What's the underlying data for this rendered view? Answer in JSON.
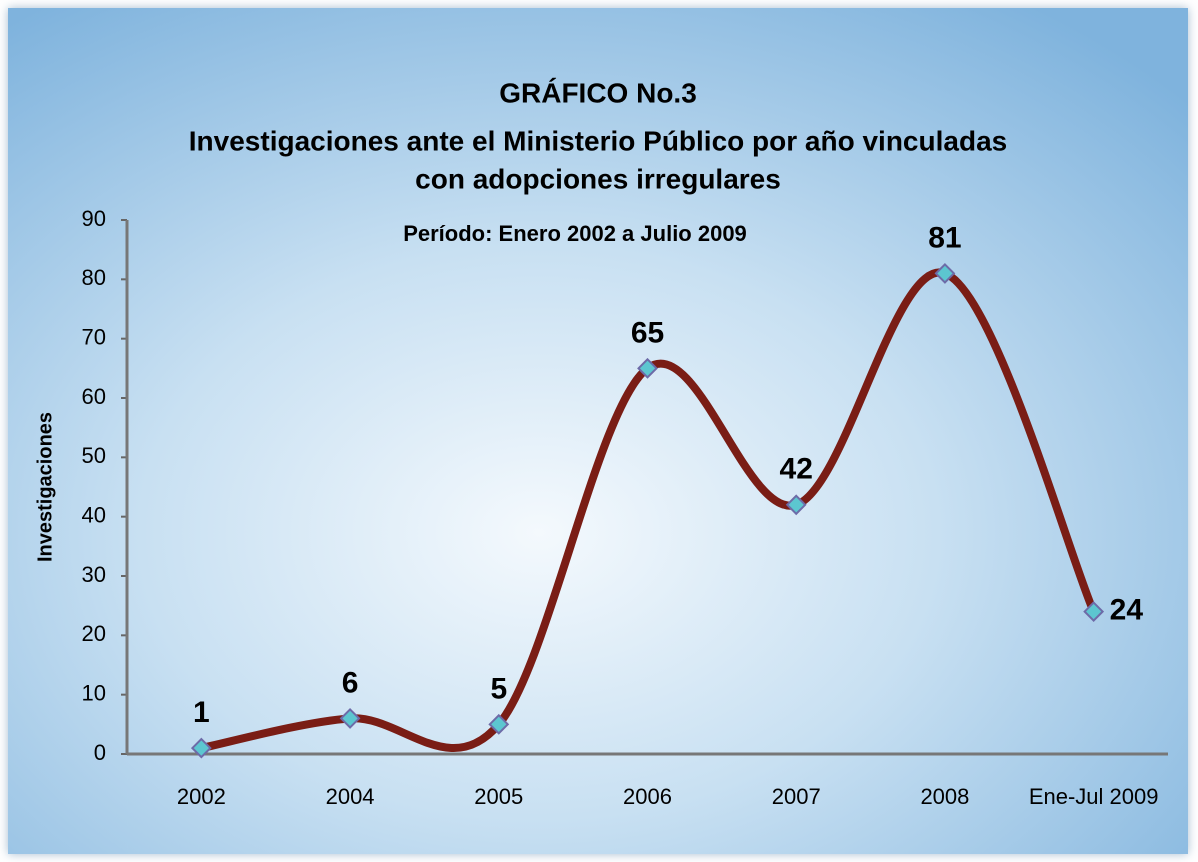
{
  "chart_data": {
    "type": "line",
    "title": "GRÁFICO No.3",
    "subtitle": [
      "Investigaciones ante el Ministerio Público  por año vinculadas",
      "con adopciones irregulares"
    ],
    "annotation": "Período: Enero 2002 a Julio 2009",
    "y_label": "Investigaciones",
    "categories": [
      "2002",
      "2004",
      "2005",
      "2006",
      "2007",
      "2008",
      "Ene-Jul 2009"
    ],
    "values": [
      1,
      6,
      5,
      65,
      42,
      81,
      24
    ],
    "color": "#7a1d15",
    "marker_color": "#5cc6d0",
    "smooth": true,
    "ylim": [
      0,
      90
    ],
    "yticks": [
      0,
      10,
      20,
      30,
      40,
      50,
      60,
      70,
      80,
      90
    ],
    "grid": false
  }
}
